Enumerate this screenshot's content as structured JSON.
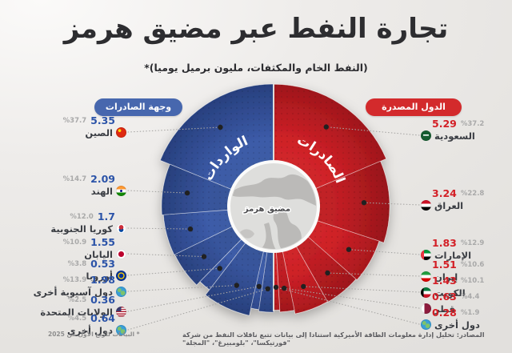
{
  "header": {
    "title": "تجارة النفط عبر مضيق هرمز",
    "subtitle": "(النفط الخام والمكثفات، مليون برميل يوميا)*"
  },
  "panels": {
    "destinations": {
      "header": "وجهة الصادرات"
    },
    "exporters": {
      "header": "الدول المصدرة"
    }
  },
  "legend": {
    "imports_label": "الواردات",
    "exports_label": "الصادرات",
    "center_label": "مضيق هرمز"
  },
  "footnote": "* البيانات للربع الأول من 2025",
  "source": "المصادر: تحليل إدارة معلومات الطاقة الأميركية استنادا إلى بيانات تتبع ناقلات النفط من شركة \"فورتيكسا\"، \"بلومبيرغ\"، \"المجلة\"",
  "colors": {
    "blue": "#3c5ba8",
    "blue_dark": "#273f7d",
    "red": "#cf2127",
    "red_dark": "#9d161b",
    "value_blue": "#2b53a8",
    "value_red": "#d31f26",
    "percent_gray": "#a9a9a9",
    "name_dark": "#3a3d43",
    "pill_blue": "#4767ae",
    "pill_red": "#d32a2c",
    "center_map_gray": "#cfcecc"
  },
  "chart_data": {
    "type": "pie",
    "variant": "half-rose-donut",
    "title": "تجارة النفط عبر مضيق هرمز",
    "unit": "مليون برميل يوميا",
    "series": [
      {
        "name": "وجهة الصادرات",
        "side": "left",
        "ring_label": "الواردات",
        "items": [
          {
            "label": "الصين",
            "flag": "cn",
            "value": 5.35,
            "value_display": "5.35",
            "percent": 37.7,
            "percent_display": "%37.7"
          },
          {
            "label": "الهند",
            "flag": "in",
            "value": 2.09,
            "value_display": "2.09",
            "percent": 14.7,
            "percent_display": "%14.7"
          },
          {
            "label": "كوريا الجنوبية",
            "flag": "kr",
            "value": 1.7,
            "value_display": "1.7",
            "percent": 12.0,
            "percent_display": "%12.0"
          },
          {
            "label": "اليابان",
            "flag": "jp",
            "value": 1.55,
            "value_display": "1.55",
            "percent": 10.9,
            "percent_display": "%10.9"
          },
          {
            "label": "أوروبا",
            "flag": "eu",
            "value": 0.53,
            "value_display": "0.53",
            "percent": 3.8,
            "percent_display": "%3.8"
          },
          {
            "label": "دول آسيوية أخرى",
            "flag": "globe",
            "value": 1.98,
            "value_display": "1.98",
            "percent": 13.9,
            "percent_display": "%13.9"
          },
          {
            "label": "الولايات المتحدة",
            "flag": "us",
            "value": 0.36,
            "value_display": "0.36",
            "percent": 2.5,
            "percent_display": "%2.5"
          },
          {
            "label": "دول أخرى",
            "flag": "globe",
            "value": 0.64,
            "value_display": "0.64",
            "percent": 4.5,
            "percent_display": "%4.5"
          }
        ]
      },
      {
        "name": "الدول المصدرة",
        "side": "right",
        "ring_label": "الصادرات",
        "items": [
          {
            "label": "السعودية",
            "flag": "sa",
            "value": 5.29,
            "value_display": "5.29",
            "percent": 37.2,
            "percent_display": "%37.2"
          },
          {
            "label": "العراق",
            "flag": "iq",
            "value": 3.24,
            "value_display": "3.24",
            "percent": 22.8,
            "percent_display": "%22.8"
          },
          {
            "label": "الإمارات",
            "flag": "ae",
            "value": 1.83,
            "value_display": "1.83",
            "percent": 12.9,
            "percent_display": "%12.9"
          },
          {
            "label": "إيران",
            "flag": "ir",
            "value": 1.51,
            "value_display": "1.51",
            "percent": 10.6,
            "percent_display": "%10.6"
          },
          {
            "label": "الكويت",
            "flag": "kw",
            "value": 1.43,
            "value_display": "1.43",
            "percent": 10.1,
            "percent_display": "%10.1"
          },
          {
            "label": "قطر",
            "flag": "qa",
            "value": 0.63,
            "value_display": "0.63",
            "percent": 4.4,
            "percent_display": "%4.4"
          },
          {
            "label": "دول أخرى",
            "flag": "globe",
            "value": 0.28,
            "value_display": "0.28",
            "percent": 1.9,
            "percent_display": "%1.9"
          }
        ]
      }
    ]
  }
}
